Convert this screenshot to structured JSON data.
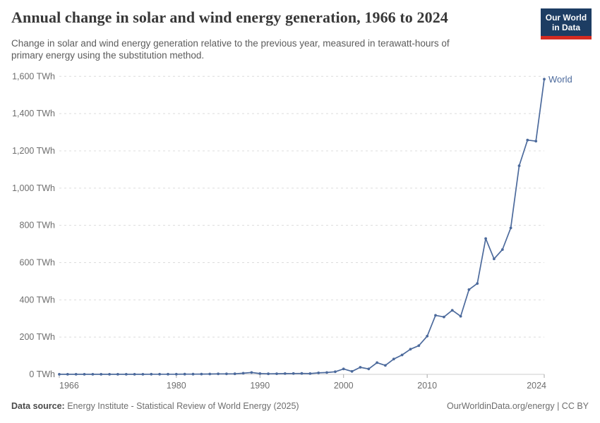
{
  "header": {
    "title": "Annual change in solar and wind energy generation, 1966 to 2024",
    "subtitle_line1": "Change in solar and wind energy generation relative to the previous year, measured in terawatt-hours of",
    "subtitle_line2": "primary energy using the substitution method.",
    "logo": {
      "line1": "Our World",
      "line2": "in Data"
    }
  },
  "footer": {
    "source_label": "Data source:",
    "source_text": " Energy Institute - Statistical Review of World Energy (2025)",
    "attribution": "OurWorldinData.org/energy | CC BY"
  },
  "colors": {
    "line": "#4c6a9c",
    "series_label": "#4c6a9c",
    "gridline": "#dcdcdc",
    "axis_line": "#cccccc",
    "tick_mark": "#a8a8a8",
    "axis_text": "#6e6e6e",
    "logo_bg": "#1d3d63",
    "logo_stripe": "#d42b21"
  },
  "chart_data": {
    "type": "line",
    "title": "Annual change in solar and wind energy generation, 1966 to 2024",
    "xlabel": "",
    "ylabel": "",
    "unit": "TWh",
    "xlim": [
      1966,
      2024
    ],
    "ylim": [
      0,
      1600
    ],
    "grid": "horizontal-dashed",
    "legend_position": "end-of-line",
    "series_label": "World",
    "x_ticks": [
      {
        "value": 1966,
        "label": "1966"
      },
      {
        "value": 1980,
        "label": "1980"
      },
      {
        "value": 1990,
        "label": "1990"
      },
      {
        "value": 2000,
        "label": "2000"
      },
      {
        "value": 2010,
        "label": "2010"
      },
      {
        "value": 2024,
        "label": "2024"
      }
    ],
    "y_ticks": [
      {
        "value": 0,
        "label": "0 TWh"
      },
      {
        "value": 200,
        "label": "200 TWh"
      },
      {
        "value": 400,
        "label": "400 TWh"
      },
      {
        "value": 600,
        "label": "600 TWh"
      },
      {
        "value": 800,
        "label": "800 TWh"
      },
      {
        "value": 1000,
        "label": "1,000 TWh"
      },
      {
        "value": 1200,
        "label": "1,200 TWh"
      },
      {
        "value": 1400,
        "label": "1,400 TWh"
      },
      {
        "value": 1600,
        "label": "1,600 TWh"
      }
    ],
    "series": [
      {
        "name": "World",
        "x": [
          1966,
          1967,
          1968,
          1969,
          1970,
          1971,
          1972,
          1973,
          1974,
          1975,
          1976,
          1977,
          1978,
          1979,
          1980,
          1981,
          1982,
          1983,
          1984,
          1985,
          1986,
          1987,
          1988,
          1989,
          1990,
          1991,
          1992,
          1993,
          1994,
          1995,
          1996,
          1997,
          1998,
          1999,
          2000,
          2001,
          2002,
          2003,
          2004,
          2005,
          2006,
          2007,
          2008,
          2009,
          2010,
          2011,
          2012,
          2013,
          2014,
          2015,
          2016,
          2017,
          2018,
          2019,
          2020,
          2021,
          2022,
          2023,
          2024
        ],
        "values": [
          0.2,
          0.2,
          0.3,
          0.3,
          0.3,
          0.3,
          0.3,
          0.4,
          0.4,
          0.5,
          0.5,
          0.6,
          0.7,
          0.8,
          0.9,
          1,
          1.2,
          1.5,
          2,
          2.5,
          2.5,
          3,
          6,
          10,
          4,
          3,
          3.5,
          4,
          4.5,
          5,
          4,
          8,
          10,
          14,
          29,
          16,
          38,
          29,
          63,
          48,
          82,
          104,
          135,
          154,
          205,
          317,
          308,
          344,
          312,
          455,
          488,
          729,
          620,
          670,
          786,
          1120,
          1258,
          1252,
          1585
        ]
      }
    ]
  }
}
